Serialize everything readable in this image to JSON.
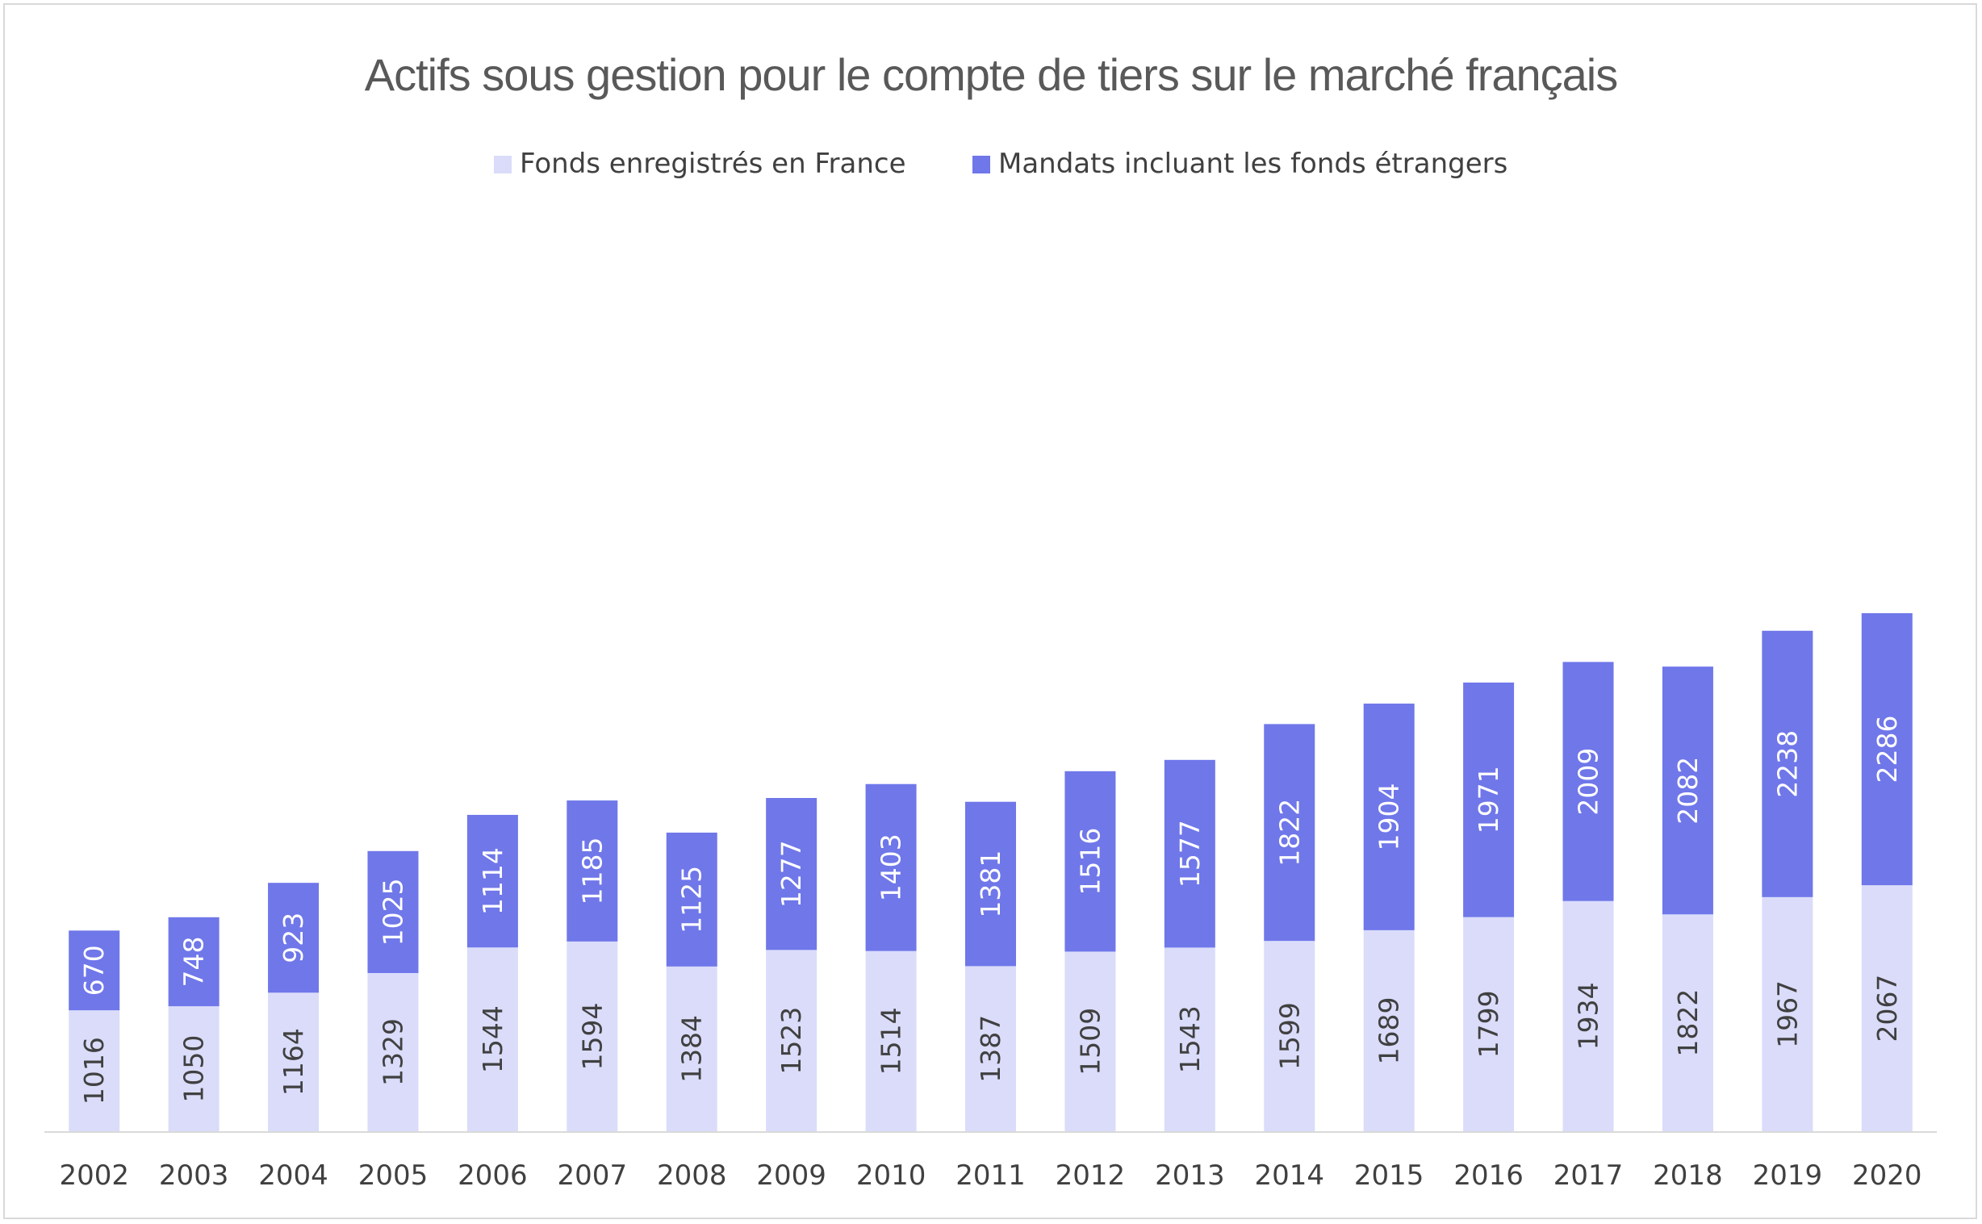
{
  "chart_data": {
    "type": "bar",
    "stacked": true,
    "title": "Actifs sous gestion pour le compte de tiers sur le marché français",
    "xlabel": "",
    "ylabel": "",
    "categories": [
      "2002",
      "2003",
      "2004",
      "2005",
      "2006",
      "2007",
      "2008",
      "2009",
      "2010",
      "2011",
      "2012",
      "2013",
      "2014",
      "2015",
      "2016",
      "2017",
      "2018",
      "2019",
      "2020"
    ],
    "series": [
      {
        "name": "Fonds enregistrés en France",
        "color": "#dadcfa",
        "label_color": "#404040",
        "values": [
          1016,
          1050,
          1164,
          1329,
          1544,
          1594,
          1384,
          1523,
          1514,
          1387,
          1509,
          1543,
          1599,
          1689,
          1799,
          1934,
          1822,
          1967,
          2067
        ]
      },
      {
        "name": "Mandats incluant les fonds étrangers",
        "color": "#6f77e9",
        "label_color": "#ffffff",
        "values": [
          670,
          748,
          923,
          1025,
          1114,
          1185,
          1125,
          1277,
          1403,
          1381,
          1516,
          1577,
          1822,
          1904,
          1971,
          2009,
          2082,
          2238,
          2286
        ]
      }
    ],
    "legend_position": "top",
    "grid": false,
    "axis_color": "#d9d9d9",
    "tick_label_color": "#404040"
  }
}
